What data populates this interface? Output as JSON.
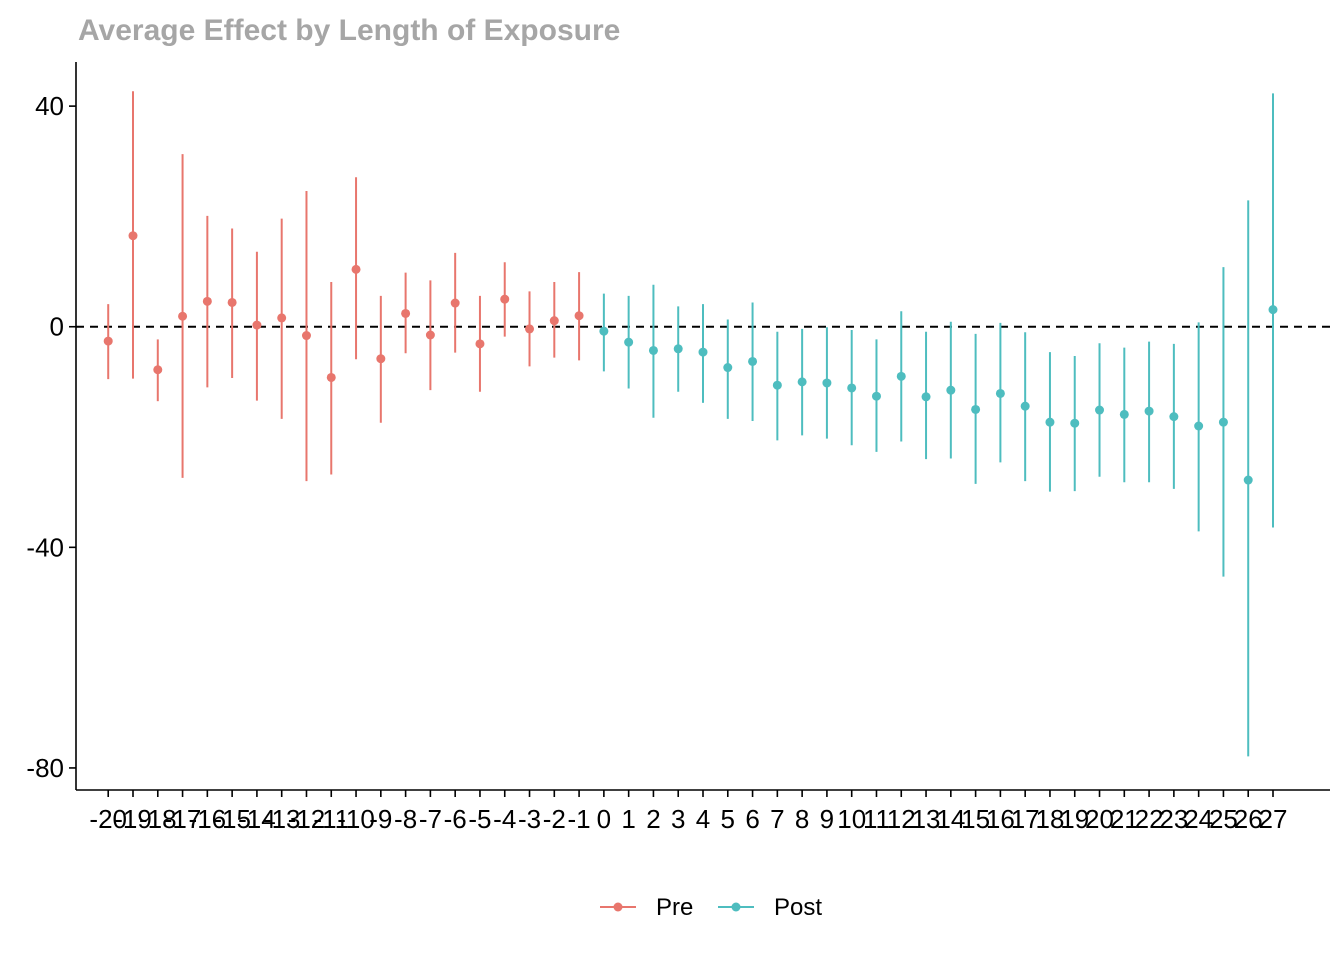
{
  "chart_data": {
    "type": "errorbar",
    "title": "Average Effect by Length of Exposure",
    "xlabel": "",
    "ylabel": "",
    "ylim": [
      -84,
      48
    ],
    "xlim": [
      -21.3,
      29.3
    ],
    "y_ticks": [
      40,
      0,
      -40,
      -80
    ],
    "reference_line": {
      "y": 0,
      "style": "dashed",
      "color": "#000000"
    },
    "grid": false,
    "legend": {
      "position": "bottom",
      "entries": [
        "Pre",
        "Post"
      ]
    },
    "colors": {
      "Pre": "#e8766d",
      "Post": "#4ebdbf",
      "title": "#a6a6a6"
    },
    "series": [
      {
        "name": "Pre",
        "x": [
          -20,
          -19,
          -18,
          -17,
          -16,
          -15,
          -14,
          -13,
          -12,
          -11,
          -10,
          -9,
          -8,
          -7,
          -6,
          -5,
          -4,
          -3,
          -2,
          -1
        ],
        "y": [
          -2.6,
          16.5,
          -7.8,
          1.9,
          4.6,
          4.4,
          0.3,
          1.6,
          -1.6,
          -9.2,
          10.4,
          -5.8,
          2.4,
          -1.5,
          4.3,
          -3.1,
          5.0,
          -0.4,
          1.1,
          2.0
        ],
        "ymin": [
          -9.5,
          -9.4,
          -13.5,
          -27.4,
          -11.0,
          -9.3,
          -13.4,
          -16.7,
          -28.0,
          -26.8,
          -5.9,
          -17.4,
          -4.8,
          -11.5,
          -4.7,
          -11.8,
          -1.8,
          -7.2,
          -5.6,
          -6.1
        ],
        "ymax": [
          4.1,
          42.7,
          -2.3,
          31.3,
          20.1,
          17.8,
          13.6,
          19.6,
          24.6,
          8.1,
          27.1,
          5.6,
          9.8,
          8.4,
          13.4,
          5.6,
          11.7,
          6.4,
          8.1,
          9.9
        ]
      },
      {
        "name": "Post",
        "x": [
          0,
          1,
          2,
          3,
          4,
          5,
          6,
          7,
          8,
          9,
          10,
          11,
          12,
          13,
          14,
          15,
          16,
          17,
          18,
          19,
          20,
          21,
          22,
          23,
          24,
          25,
          26,
          27
        ],
        "y": [
          -0.8,
          -2.8,
          -4.3,
          -4.0,
          -4.6,
          -7.4,
          -6.3,
          -10.6,
          -10.0,
          -10.2,
          -11.1,
          -12.6,
          -9.0,
          -12.7,
          -11.5,
          -15.0,
          -12.1,
          -14.4,
          -17.3,
          -17.5,
          -15.1,
          -15.9,
          -15.3,
          -16.3,
          -18.0,
          -17.3,
          -27.8,
          3.1
        ],
        "ymin": [
          -8.1,
          -11.2,
          -16.5,
          -11.8,
          -13.8,
          -16.7,
          -17.1,
          -20.6,
          -19.7,
          -20.3,
          -21.5,
          -22.7,
          -20.8,
          -24.0,
          -23.9,
          -28.5,
          -24.6,
          -28.0,
          -29.9,
          -29.8,
          -27.2,
          -28.2,
          -28.2,
          -29.4,
          -37.1,
          -45.3,
          -77.9,
          -36.4
        ],
        "ymax": [
          6.0,
          5.6,
          7.6,
          3.7,
          4.1,
          1.3,
          4.4,
          -0.9,
          -0.4,
          -0.1,
          -0.6,
          -2.3,
          2.8,
          -0.9,
          0.9,
          -1.3,
          0.7,
          -1.0,
          -4.6,
          -5.3,
          -3.0,
          -3.8,
          -2.7,
          -3.1,
          0.8,
          10.8,
          22.9,
          42.3
        ]
      }
    ],
    "x_tick_labels": [
      "-20",
      "-19",
      "-18",
      "-17",
      "-16",
      "-15",
      "-14",
      "-13",
      "-12",
      "-11",
      "-10",
      "-9",
      "-8",
      "-7",
      "-6",
      "-5",
      "-4",
      "-3",
      "-2",
      "-1",
      "0",
      "1",
      "2",
      "3",
      "4",
      "5",
      "6",
      "7",
      "8",
      "9",
      "10",
      "11",
      "12",
      "13",
      "14",
      "15",
      "16",
      "17",
      "18",
      "19",
      "20",
      "21",
      "22",
      "23",
      "24",
      "25",
      "26",
      "27"
    ]
  }
}
